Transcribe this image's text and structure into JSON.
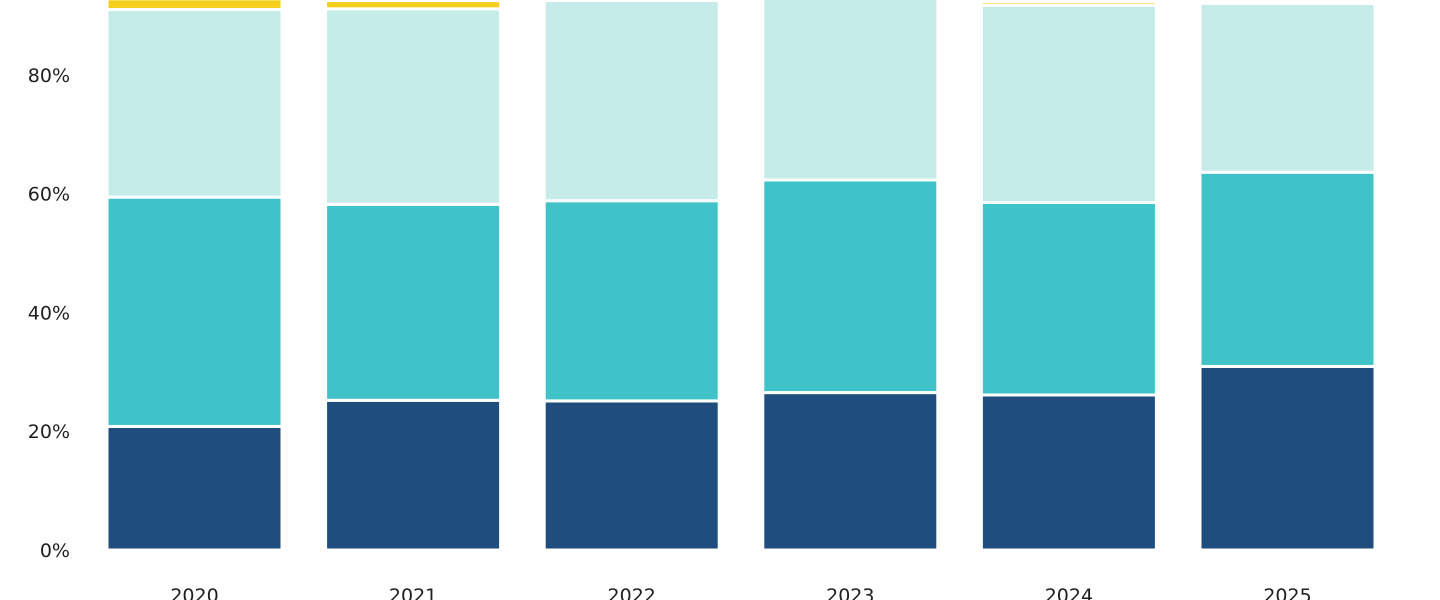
{
  "chart_data": {
    "type": "bar",
    "stacked": true,
    "categories": [
      "2020",
      "2021",
      "2022",
      "2023",
      "2024",
      "2025"
    ],
    "series": [
      {
        "color": "#1f4e7e",
        "values": [
          20.8,
          25.2,
          25.1,
          26.5,
          26.1,
          30.9
        ]
      },
      {
        "color": "#40c3c8",
        "values": [
          38.6,
          33.0,
          33.7,
          35.8,
          32.4,
          32.7
        ]
      },
      {
        "color": "#c5ece9",
        "values": [
          31.6,
          32.9,
          33.7,
          30.8,
          33.2,
          28.4
        ]
      },
      {
        "color": "#f5cf1d",
        "values": [
          1.8,
          1.4,
          0,
          0,
          0.6,
          0
        ]
      }
    ],
    "yticks": [
      "0%",
      "20%",
      "40%",
      "60%",
      "80%"
    ],
    "ylim": [
      0,
      93
    ],
    "ylabel": "",
    "xlabel": "",
    "grid": false,
    "legend": "none"
  }
}
